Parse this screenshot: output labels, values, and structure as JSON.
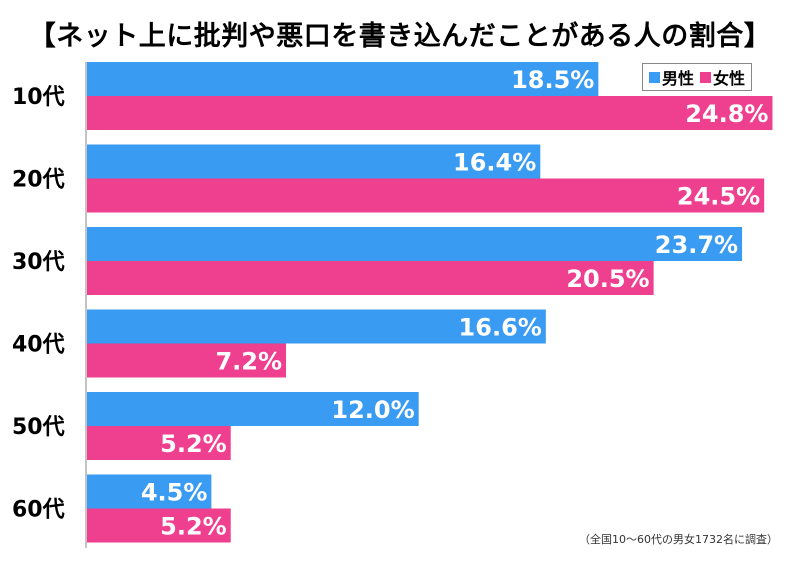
{
  "colors": {
    "male": "#3a9bf2",
    "female": "#ef3f8f"
  },
  "chart_data": {
    "type": "bar",
    "orientation": "horizontal",
    "title": "【ネット上に批判や悪口を書き込んだことがある人の割合】",
    "categories": [
      "10代",
      "20代",
      "30代",
      "40代",
      "50代",
      "60代"
    ],
    "series": [
      {
        "name": "男性",
        "values": [
          18.5,
          16.4,
          23.7,
          16.6,
          12.0,
          4.5
        ]
      },
      {
        "name": "女性",
        "values": [
          24.8,
          24.5,
          20.5,
          7.2,
          5.2,
          5.2
        ]
      }
    ],
    "value_labels": [
      [
        "18.5%",
        "16.4%",
        "23.7%",
        "16.6%",
        "12.0%",
        "4.5%"
      ],
      [
        "24.8%",
        "24.5%",
        "20.5%",
        "7.2%",
        "5.2%",
        "5.2%"
      ]
    ],
    "unit": "%",
    "xlim": [
      0,
      25
    ],
    "grid": false,
    "legend_position": "top-right",
    "note": "（全国10～60代の男女1732名に調査）"
  }
}
